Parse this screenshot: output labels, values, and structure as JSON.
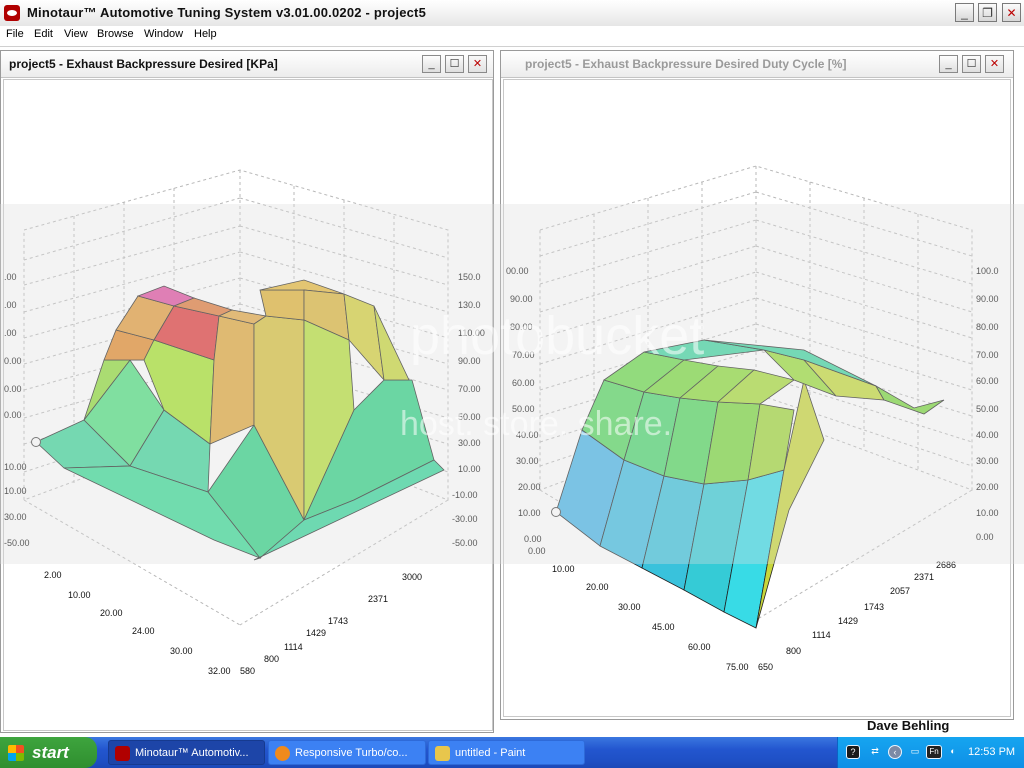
{
  "app": {
    "title": "Minotaur™ Automotive Tuning System  v3.01.00.0202 - project5",
    "min_glyph": "_",
    "restore_glyph": "❐",
    "close_glyph": "✕"
  },
  "menu": [
    "File",
    "Edit",
    "View",
    "Browse",
    "Window",
    "Help"
  ],
  "window_left": {
    "title": "project5 - Exhaust Backpressure Desired [KPa]",
    "chart_data": {
      "type": "surface",
      "x_axis_ticks": [
        "2.00",
        "10.00",
        "20.00",
        "24.00",
        "30.00",
        "32.00"
      ],
      "y_axis_ticks": [
        "580",
        "800",
        "1114",
        "1429",
        "1743",
        "2371",
        "3000"
      ],
      "z_ticks_right": [
        "150.0",
        "130.0",
        "110.00",
        "90.00",
        "70.00",
        "50.00",
        "30.00",
        "10.00",
        "-10.00",
        "-30.00",
        "-50.00"
      ],
      "z_ticks_left": [
        ".00",
        ".00",
        ".00",
        "0.00",
        "0.00",
        "0.00",
        "10.00",
        "10.00",
        "30.00",
        "-50.00"
      ],
      "zlim": [
        -50,
        150
      ],
      "grid": true
    }
  },
  "window_right": {
    "title": "project5 - Exhaust Backpressure Desired Duty Cycle [%]",
    "chart_data": {
      "type": "surface",
      "x_axis_ticks": [
        "0.00",
        "10.00",
        "20.00",
        "30.00",
        "45.00",
        "60.00",
        "75.00"
      ],
      "y_axis_ticks": [
        "650",
        "800",
        "1114",
        "1429",
        "1743",
        "2057",
        "2371",
        "2686"
      ],
      "z_ticks_right": [
        "100.0",
        "90.00",
        "80.00",
        "70.00",
        "60.00",
        "50.00",
        "40.00",
        "30.00",
        "20.00",
        "10.00",
        "0.00"
      ],
      "z_ticks_left": [
        "00.00",
        "90.00",
        "80.00",
        "70.00",
        "60.00",
        "50.00",
        "40.00",
        "30.00",
        "20.00",
        "10.00",
        "0.00"
      ],
      "zlim": [
        0,
        100
      ],
      "grid": true
    }
  },
  "watermark": {
    "logo": "photobucket",
    "sub": "host. store. share."
  },
  "taskbar": {
    "start": "start",
    "buttons": [
      "Minotaur™ Automotiv...",
      "Responsive Turbo/co...",
      "untitled - Paint"
    ],
    "clock": "12:53 PM",
    "fn_label": "Fn"
  },
  "user_name": "Dave Behling"
}
